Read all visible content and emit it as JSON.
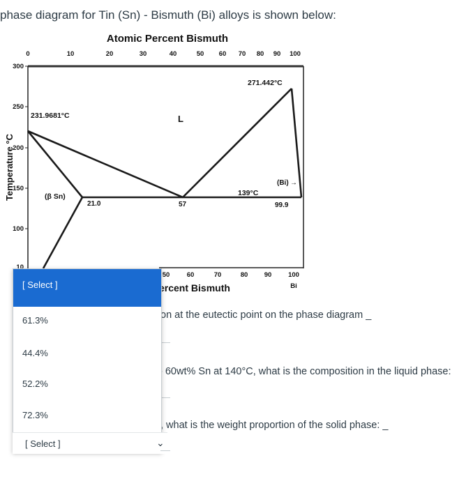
{
  "intro_text": "phase diagram for Tin (Sn) - Bismuth (Bi) alloys is shown below:",
  "diagram": {
    "top_axis_title": "Atomic Percent Bismuth",
    "top_ticks": [
      "0",
      "10",
      "20",
      "30",
      "40",
      "50",
      "60",
      "70",
      "80",
      "90",
      "100"
    ],
    "y_axis_title": "Temperature °C",
    "y_ticks": [
      "300",
      "250",
      "200",
      "150",
      "100"
    ],
    "y_tick_partial": "10",
    "bottom_ticks": [
      "50",
      "60",
      "70",
      "80",
      "90",
      "100"
    ],
    "bottom_end_label": "Bi",
    "bottom_axis_title_partial": "ercent Bismuth",
    "melt_sn_label": "231.9681°C",
    "melt_bi_label": "271.442°C",
    "liquid_label": "L",
    "beta_sn_label": "(β Sn)",
    "bi_label": "(Bi)",
    "eutectic_temp_label": "139°C",
    "sn_solvus_comp": "21.0",
    "eutectic_comp": "57",
    "bi_solvus_comp": "99.9"
  },
  "questions": {
    "q1": "on at the eutectic point on the phase diagram _",
    "q2": "- 60wt% Sn at 140°C, what is the composition in the liquid phase:",
    "q3": ", what is the weight proportion of the solid phase: _"
  },
  "dropdown_open": {
    "selected_label": "[ Select ]",
    "options": [
      "61.3%",
      "44.4%",
      "52.2%",
      "72.3%"
    ]
  },
  "dropdown_closed": {
    "label": "[ Select ]",
    "chevron_icon": "chevron-down-icon"
  }
}
